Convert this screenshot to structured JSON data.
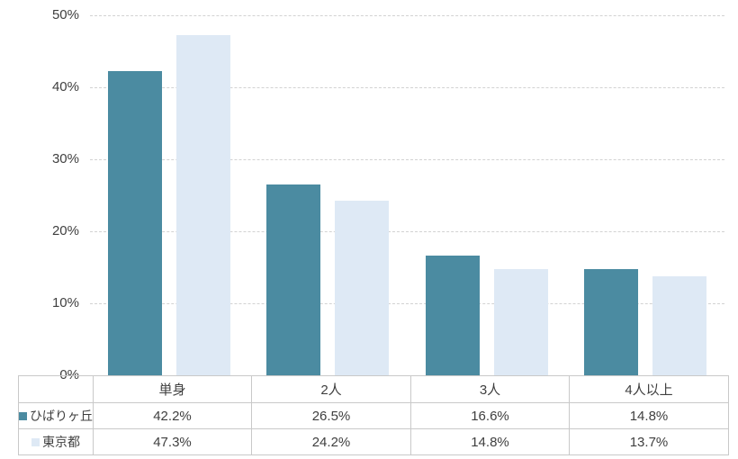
{
  "chart_data": {
    "type": "bar",
    "title": "",
    "xlabel": "",
    "ylabel": "",
    "categories": [
      "単身",
      "2人",
      "3人",
      "4人以上"
    ],
    "series": [
      {
        "name": "ひばりヶ丘",
        "color": "#4B8BA1",
        "values": [
          42.2,
          26.5,
          16.6,
          14.8
        ]
      },
      {
        "name": "東京都",
        "color": "#DEE9F5",
        "values": [
          47.3,
          24.2,
          14.8,
          13.7
        ]
      }
    ],
    "ylim": [
      0,
      50
    ],
    "y_tick_labels": [
      "50%",
      "40%",
      "30%",
      "20%",
      "10%",
      "0%"
    ],
    "grid": "horizontal-dashed",
    "legend_position": "table-rows-left"
  },
  "table": {
    "header": [
      "単身",
      "2人",
      "3人",
      "4人以上"
    ],
    "rows": [
      {
        "legend": "ひばりヶ丘",
        "values": [
          "42.2%",
          "26.5%",
          "16.6%",
          "14.8%"
        ]
      },
      {
        "legend": "東京都",
        "values": [
          "47.3%",
          "24.2%",
          "14.8%",
          "13.7%"
        ]
      }
    ]
  },
  "colors": {
    "series_1": "#4B8BA1",
    "series_2": "#DEE9F5",
    "gridline": "#D2D2D2",
    "table_border": "#C9C9C9",
    "text": "#3F3F3F",
    "background": "#FFFFFF"
  }
}
